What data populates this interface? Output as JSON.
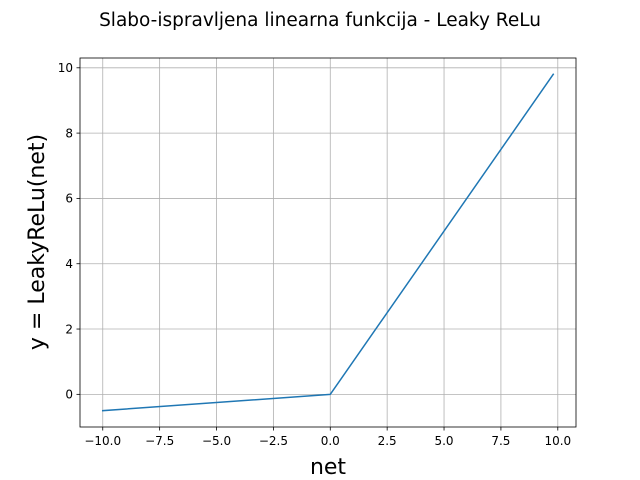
{
  "chart_data": {
    "type": "line",
    "title": "Slabo-ispravljena linearna funkcija - Leaky ReLu",
    "xlabel": "net",
    "ylabel": "y = LeakyReLu(net)",
    "xlim": [
      -11.0,
      10.8
    ],
    "ylim": [
      -1.0,
      10.3
    ],
    "x_ticks": [
      -10.0,
      -7.5,
      -5.0,
      -2.5,
      0.0,
      2.5,
      5.0,
      7.5,
      10.0
    ],
    "x_tick_labels": [
      "−10.0",
      "−7.5",
      "−5.0",
      "−2.5",
      "0.0",
      "2.5",
      "5.0",
      "7.5",
      "10.0"
    ],
    "y_ticks": [
      0,
      2,
      4,
      6,
      8,
      10
    ],
    "y_tick_labels": [
      "0",
      "2",
      "4",
      "6",
      "8",
      "10"
    ],
    "grid": true,
    "series": [
      {
        "color": "#1f77b4",
        "x": [
          -10.0,
          0.0,
          9.8
        ],
        "y": [
          -0.5,
          0.0,
          9.8
        ]
      }
    ]
  }
}
